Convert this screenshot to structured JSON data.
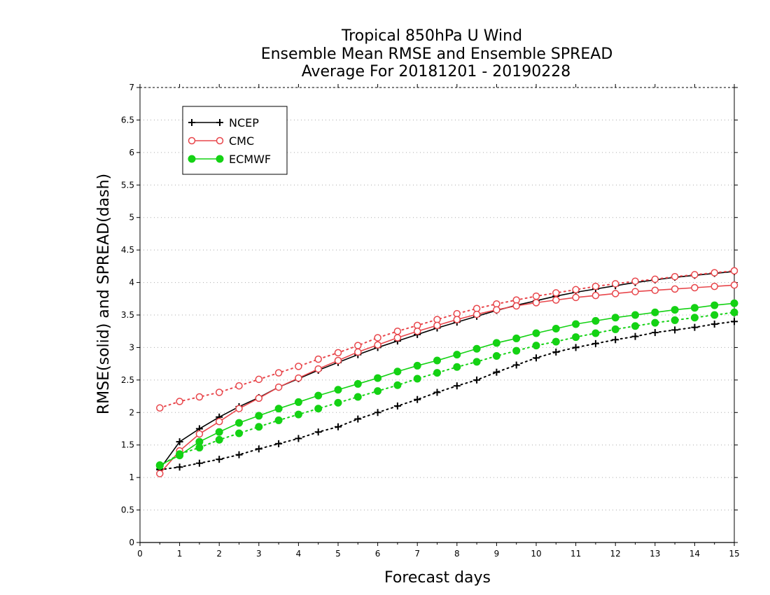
{
  "chart_data": {
    "type": "line",
    "title": [
      "Tropical 850hPa U Wind",
      "Ensemble Mean RMSE and Ensemble SPREAD",
      "Average For 20181201 - 20190228"
    ],
    "xlabel": "Forecast days",
    "ylabel": "RMSE(solid) and SPREAD(dash)",
    "xlim": [
      0,
      15
    ],
    "ylim": [
      0,
      7
    ],
    "xticks": [
      "0",
      "1",
      "2",
      "3",
      "4",
      "5",
      "6",
      "7",
      "8",
      "9",
      "10",
      "11",
      "12",
      "13",
      "14",
      "15"
    ],
    "yticks": [
      "0",
      "0.5",
      "1",
      "1.5",
      "2",
      "2.5",
      "3",
      "3.5",
      "4",
      "4.5",
      "5",
      "5.5",
      "6",
      "6.5",
      "7"
    ],
    "grid": "horizontal-dotted",
    "legend_position": "top-left",
    "x": [
      0.5,
      1,
      1.5,
      2,
      2.5,
      3,
      3.5,
      4,
      4.5,
      5,
      5.5,
      6,
      6.5,
      7,
      7.5,
      8,
      8.5,
      9,
      9.5,
      10,
      10.5,
      11,
      11.5,
      12,
      12.5,
      13,
      13.5,
      14,
      14.5,
      15
    ],
    "series": [
      {
        "name": "NCEP",
        "color": "#000000",
        "marker": "plus",
        "rmse": [
          1.13,
          1.55,
          1.75,
          1.93,
          2.09,
          2.23,
          2.39,
          2.52,
          2.65,
          2.77,
          2.89,
          3.0,
          3.1,
          3.2,
          3.3,
          3.39,
          3.48,
          3.57,
          3.65,
          3.72,
          3.79,
          3.85,
          3.9,
          3.95,
          4.0,
          4.04,
          4.08,
          4.11,
          4.14,
          4.17
        ],
        "spread": [
          1.12,
          1.16,
          1.22,
          1.28,
          1.35,
          1.44,
          1.52,
          1.6,
          1.7,
          1.78,
          1.9,
          2.0,
          2.1,
          2.2,
          2.31,
          2.41,
          2.5,
          2.62,
          2.73,
          2.84,
          2.93,
          3.0,
          3.06,
          3.12,
          3.17,
          3.23,
          3.27,
          3.31,
          3.36,
          3.4
        ]
      },
      {
        "name": "CMC",
        "color": "#e8464b",
        "marker": "circle-open",
        "rmse": [
          1.06,
          1.41,
          1.67,
          1.86,
          2.06,
          2.22,
          2.39,
          2.53,
          2.67,
          2.8,
          2.93,
          3.04,
          3.15,
          3.25,
          3.34,
          3.43,
          3.51,
          3.58,
          3.64,
          3.69,
          3.73,
          3.77,
          3.8,
          3.83,
          3.86,
          3.88,
          3.9,
          3.92,
          3.94,
          3.96
        ],
        "spread": [
          2.07,
          2.17,
          2.24,
          2.31,
          2.41,
          2.51,
          2.61,
          2.71,
          2.82,
          2.92,
          3.03,
          3.15,
          3.25,
          3.34,
          3.43,
          3.52,
          3.6,
          3.67,
          3.73,
          3.79,
          3.84,
          3.89,
          3.94,
          3.98,
          4.02,
          4.05,
          4.09,
          4.12,
          4.15,
          4.18
        ]
      },
      {
        "name": "ECMWF",
        "color": "#14d214",
        "marker": "circle-filled",
        "rmse": [
          1.19,
          1.34,
          1.55,
          1.7,
          1.84,
          1.95,
          2.06,
          2.16,
          2.26,
          2.35,
          2.44,
          2.53,
          2.63,
          2.72,
          2.8,
          2.89,
          2.98,
          3.07,
          3.14,
          3.22,
          3.29,
          3.36,
          3.41,
          3.46,
          3.5,
          3.54,
          3.58,
          3.61,
          3.65,
          3.68
        ],
        "spread": [
          1.18,
          1.36,
          1.46,
          1.58,
          1.68,
          1.78,
          1.88,
          1.97,
          2.06,
          2.15,
          2.24,
          2.33,
          2.42,
          2.52,
          2.61,
          2.7,
          2.78,
          2.87,
          2.95,
          3.03,
          3.09,
          3.16,
          3.22,
          3.28,
          3.33,
          3.38,
          3.42,
          3.46,
          3.5,
          3.54
        ]
      }
    ]
  }
}
